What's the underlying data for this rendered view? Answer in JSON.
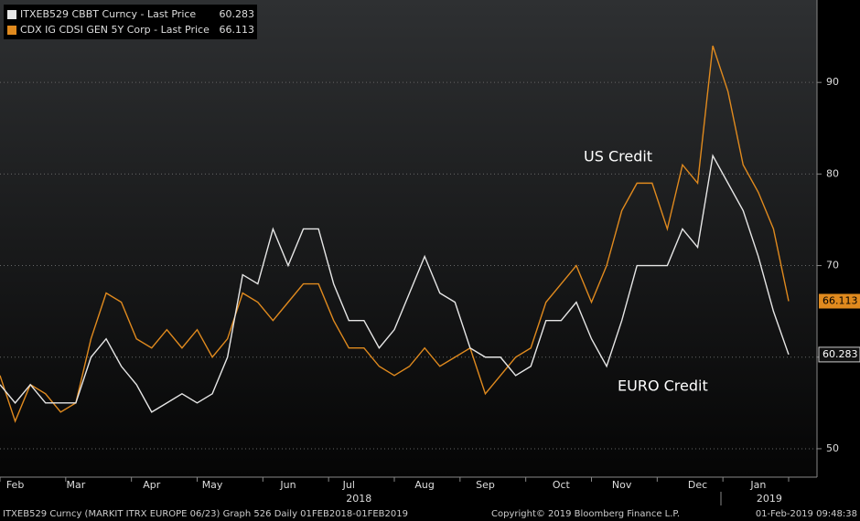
{
  "chart_data": {
    "type": "line",
    "categories": [
      null,
      "Feb",
      null,
      null,
      null,
      "Mar",
      null,
      null,
      null,
      null,
      "Apr",
      null,
      null,
      null,
      "May",
      null,
      null,
      null,
      null,
      "Jun",
      null,
      null,
      null,
      "Jul",
      null,
      null,
      null,
      null,
      "Aug",
      null,
      null,
      null,
      "Sep",
      null,
      null,
      null,
      null,
      "Oct",
      null,
      null,
      null,
      "Nov",
      null,
      null,
      null,
      null,
      "Dec",
      null,
      null,
      null,
      "Jan",
      null,
      null
    ],
    "series": [
      {
        "name": "ITXEB529 CBBT Curncy - Last Price",
        "color": "#e6e6e6",
        "values": [
          57,
          55,
          57,
          55,
          55,
          55,
          60,
          62,
          59,
          57,
          54,
          55,
          56,
          55,
          56,
          60,
          69,
          68,
          74,
          70,
          74,
          74,
          68,
          64,
          64,
          61,
          63,
          67,
          71,
          67,
          66,
          61,
          60,
          60,
          58,
          59,
          64,
          64,
          66,
          62,
          59,
          64,
          70,
          70,
          70,
          74,
          72,
          82,
          79,
          76,
          71,
          65,
          60.283
        ]
      },
      {
        "name": "CDX IG CDSI GEN 5Y Corp - Last Price",
        "color": "#e08a1e",
        "values": [
          58,
          53,
          57,
          56,
          54,
          55,
          62,
          67,
          66,
          62,
          61,
          63,
          61,
          63,
          60,
          62,
          67,
          66,
          64,
          66,
          68,
          68,
          64,
          61,
          61,
          59,
          58,
          59,
          61,
          59,
          60,
          61,
          56,
          58,
          60,
          61,
          66,
          68,
          70,
          66,
          70,
          76,
          79,
          79,
          74,
          81,
          79,
          94,
          89,
          81,
          78,
          74,
          66.113
        ]
      }
    ],
    "annotations": [
      "US Credit",
      "EURO Credit"
    ],
    "year_labels": [
      "2018",
      "2019"
    ],
    "footer": [
      "ITXEB529 Curncy (MARKIT ITRX EUROPE 06/23) Graph 526  Daily 01FEB2018-01FEB2019",
      "Copyright© 2019 Bloomberg Finance L.P.",
      "01-Feb-2019 09:48:38"
    ],
    "ylim": [
      46.9,
      99
    ],
    "yticks": [
      50,
      60,
      70,
      80,
      90
    ],
    "grid": true
  }
}
